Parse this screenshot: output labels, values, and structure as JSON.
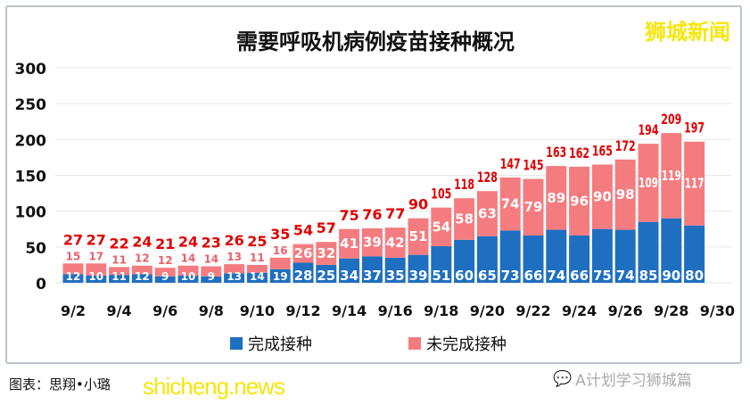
{
  "chart_data": {
    "type": "bar",
    "stacked": true,
    "title": "需要呼吸机病例疫苗接种概况",
    "categories": [
      "9/2",
      "9/3",
      "9/4",
      "9/5",
      "9/6",
      "9/7",
      "9/8",
      "9/9",
      "9/10",
      "9/11",
      "9/12",
      "9/13",
      "9/14",
      "9/15",
      "9/16",
      "9/17",
      "9/18",
      "9/19",
      "9/20",
      "9/21",
      "9/22",
      "9/23",
      "9/24",
      "9/25",
      "9/26",
      "9/27",
      "9/28",
      "9/29"
    ],
    "x_tick_labels": [
      "9/2",
      "9/4",
      "9/6",
      "9/8",
      "9/10",
      "9/12",
      "9/14",
      "9/16",
      "9/18",
      "9/20",
      "9/22",
      "9/24",
      "9/26",
      "9/28",
      "9/30"
    ],
    "series": [
      {
        "name": "完成接种",
        "color": "#1f6fc0",
        "values": [
          12,
          10,
          11,
          12,
          9,
          10,
          9,
          13,
          14,
          19,
          28,
          25,
          34,
          37,
          35,
          39,
          51,
          60,
          65,
          73,
          66,
          74,
          66,
          75,
          74,
          85,
          90,
          80
        ]
      },
      {
        "name": "未完成接种",
        "color": "#f47c80",
        "values": [
          15,
          17,
          11,
          12,
          12,
          14,
          14,
          13,
          11,
          16,
          26,
          32,
          41,
          39,
          42,
          51,
          54,
          58,
          63,
          74,
          79,
          89,
          96,
          90,
          98,
          109,
          119,
          117
        ]
      }
    ],
    "totals": [
      27,
      27,
      22,
      24,
      21,
      24,
      23,
      26,
      25,
      35,
      54,
      57,
      75,
      76,
      77,
      90,
      105,
      118,
      128,
      147,
      145,
      163,
      162,
      165,
      172,
      194,
      209,
      197
    ],
    "total_label_color": "#e00000",
    "ylim": [
      0,
      300
    ],
    "y_ticks": [
      0,
      50,
      100,
      150,
      200,
      250,
      300
    ],
    "grid": true,
    "legend_position": "bottom"
  },
  "credit": "图表：思翔•小璐",
  "watermark_site": "shicheng.news",
  "watermark_brand": "狮城新闻",
  "wechat_account": "A计划学习狮城篇"
}
